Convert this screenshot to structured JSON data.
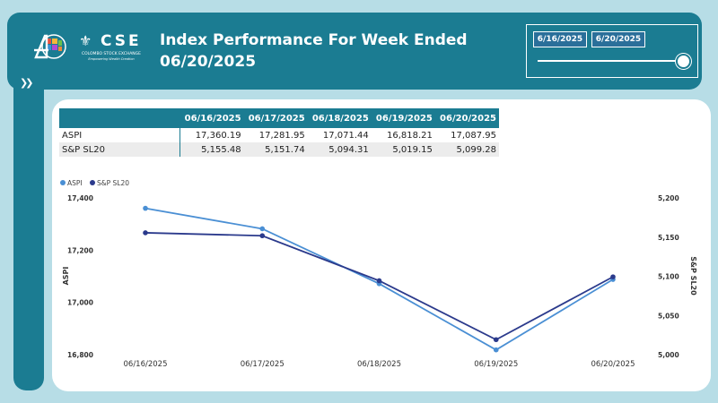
{
  "header": {
    "title_line1": "Index Performance For Week Ended",
    "title_line2": "06/20/2025",
    "logo_cse": "CSE",
    "logo_cse_sub": "COLOMBO STOCK EXCHANGE",
    "logo_cse_tag": "Empowering Wealth Creation"
  },
  "slicer": {
    "start": "6/16/2025",
    "end": "6/20/2025",
    "range_fraction": 1.0
  },
  "table": {
    "columns": [
      "",
      "06/16/2025",
      "06/17/2025",
      "06/18/2025",
      "06/19/2025",
      "06/20/2025"
    ],
    "rows": [
      {
        "name": "ASPI",
        "values": [
          "17,360.19",
          "17,281.95",
          "17,071.44",
          "16,818.21",
          "17,087.95"
        ]
      },
      {
        "name": "S&P SL20",
        "values": [
          "5,155.48",
          "5,151.74",
          "5,094.31",
          "5,019.15",
          "5,099.28"
        ]
      }
    ]
  },
  "chart_data": {
    "type": "line",
    "x": [
      "06/16/2025",
      "06/17/2025",
      "06/18/2025",
      "06/19/2025",
      "06/20/2025"
    ],
    "series": [
      {
        "name": "ASPI",
        "axis": "left",
        "color": "#4a8fd4",
        "values": [
          17360.19,
          17281.95,
          17071.44,
          16818.21,
          17087.95
        ]
      },
      {
        "name": "S&P SL20",
        "axis": "right",
        "color": "#2b3a8c",
        "values": [
          5155.48,
          5151.74,
          5094.31,
          5019.15,
          5099.28
        ]
      }
    ],
    "ylabel_left": "ASPI",
    "ylabel_right": "S&P SL20",
    "ylim_left": [
      16800,
      17400
    ],
    "ylim_right": [
      5000,
      5200
    ],
    "yticks_left": [
      "16,800",
      "17,000",
      "17,200",
      "17,400"
    ],
    "yticks_right": [
      "5,000",
      "5,050",
      "5,100",
      "5,150",
      "5,200"
    ],
    "legend_position": "top-left",
    "grid": false
  }
}
